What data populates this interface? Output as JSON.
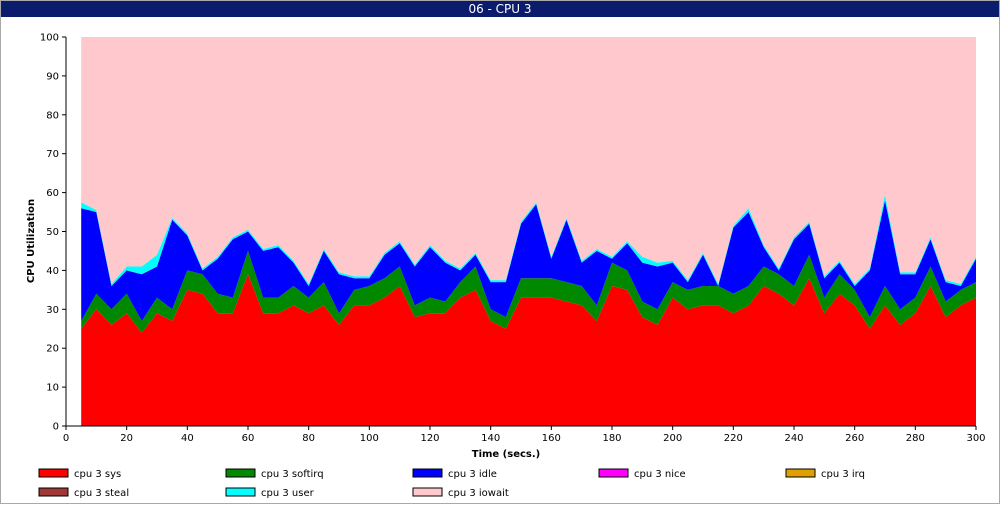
{
  "window": {
    "title": "06 - CPU 3"
  },
  "chart_data": {
    "type": "area",
    "stacked": true,
    "xlabel": "Time (secs.)",
    "ylabel": "CPU Utilization",
    "xlim": [
      0,
      300
    ],
    "ylim": [
      0,
      100
    ],
    "xticks": [
      0,
      20,
      40,
      60,
      80,
      100,
      120,
      140,
      160,
      180,
      200,
      220,
      240,
      260,
      280,
      300
    ],
    "yticks": [
      0,
      10,
      20,
      30,
      40,
      50,
      60,
      70,
      80,
      90,
      100
    ],
    "grid": false,
    "legend_position": "bottom",
    "x": [
      5,
      10,
      15,
      20,
      25,
      30,
      35,
      40,
      45,
      50,
      55,
      60,
      65,
      70,
      75,
      80,
      85,
      90,
      95,
      100,
      105,
      110,
      115,
      120,
      125,
      130,
      135,
      140,
      145,
      150,
      155,
      160,
      165,
      170,
      175,
      180,
      185,
      190,
      195,
      200,
      205,
      210,
      215,
      220,
      225,
      230,
      235,
      240,
      245,
      250,
      255,
      260,
      265,
      270,
      275,
      280,
      285,
      290,
      295,
      300
    ],
    "series": [
      {
        "name": "cpu 3 sys",
        "color": "#ff0000",
        "values": [
          25,
          30,
          26,
          29,
          24,
          29,
          27,
          35,
          34,
          29,
          29,
          39,
          29,
          29,
          31,
          29,
          31,
          26,
          31,
          31,
          33,
          36,
          28,
          29,
          29,
          33,
          35,
          27,
          25,
          33,
          33,
          33,
          32,
          31,
          27,
          36,
          35,
          28,
          26,
          33,
          30,
          31,
          31,
          29,
          31,
          36,
          34,
          31,
          38,
          29,
          34,
          31,
          25,
          31,
          26,
          29,
          36,
          28,
          31,
          33
        ]
      },
      {
        "name": "cpu 3 softirq",
        "color": "#008800",
        "values": [
          2,
          4,
          4,
          5,
          3,
          4,
          3,
          5,
          5,
          5,
          4,
          6,
          4,
          4,
          5,
          4,
          6,
          3,
          4,
          5,
          5,
          5,
          3,
          4,
          3,
          4,
          6,
          3,
          3,
          5,
          5,
          5,
          5,
          5,
          4,
          6,
          5,
          4,
          4,
          4,
          5,
          5,
          5,
          5,
          5,
          5,
          5,
          5,
          6,
          4,
          5,
          4,
          3,
          5,
          4,
          4,
          5,
          4,
          4,
          4
        ]
      },
      {
        "name": "cpu 3 idle",
        "color": "#0000ff",
        "values": [
          29,
          21,
          6,
          6,
          12,
          8,
          23,
          9,
          1,
          9,
          15,
          5,
          12,
          13,
          6,
          3,
          8,
          10,
          3,
          2,
          6,
          6,
          10,
          13,
          10,
          3,
          3,
          7,
          9,
          14,
          19,
          5,
          16,
          6,
          14,
          1,
          7,
          10,
          11,
          5,
          2,
          8,
          0,
          17,
          19,
          5,
          1,
          12,
          8,
          5,
          3,
          1,
          12,
          22,
          9,
          6,
          7,
          5,
          1,
          6
        ]
      },
      {
        "name": "cpu 3 nice",
        "color": "#ff00ff",
        "values": [
          0,
          0,
          0,
          0,
          0,
          0,
          0,
          0,
          0,
          0,
          0,
          0,
          0,
          0,
          0,
          0,
          0,
          0,
          0,
          0,
          0,
          0,
          0,
          0,
          0,
          0,
          0,
          0,
          0,
          0,
          0,
          0,
          0,
          0,
          0,
          0,
          0,
          0,
          0,
          0,
          0,
          0,
          0,
          0,
          0,
          0,
          0,
          0,
          0,
          0,
          0,
          0,
          0,
          0,
          0,
          0,
          0,
          0,
          0,
          0
        ]
      },
      {
        "name": "cpu 3 irq",
        "color": "#e0a000",
        "values": [
          0,
          0,
          0,
          0,
          0,
          0,
          0,
          0,
          0,
          0,
          0,
          0,
          0,
          0,
          0,
          0,
          0,
          0,
          0,
          0,
          0,
          0,
          0,
          0,
          0,
          0,
          0,
          0,
          0,
          0,
          0,
          0,
          0,
          0,
          0,
          0,
          0,
          0,
          0,
          0,
          0,
          0,
          0,
          0,
          0,
          0,
          0,
          0,
          0,
          0,
          0,
          0,
          0,
          0,
          0,
          0,
          0,
          0,
          0,
          0
        ]
      },
      {
        "name": "cpu 3 steal",
        "color": "#a03838",
        "values": [
          0,
          0,
          0,
          0,
          0,
          0,
          0,
          0,
          0,
          0,
          0,
          0,
          0,
          0,
          0,
          0,
          0,
          0,
          0,
          0,
          0,
          0,
          0,
          0,
          0,
          0,
          0,
          0,
          0,
          0,
          0,
          0,
          0,
          0,
          0,
          0,
          0,
          0,
          0,
          0,
          0,
          0,
          0,
          0,
          0,
          0,
          0,
          0,
          0,
          0,
          0,
          0,
          0,
          0,
          0,
          0,
          0,
          0,
          0,
          0
        ]
      },
      {
        "name": "cpu 3 user",
        "color": "#00ffff",
        "values": [
          1.5,
          0.5,
          0.5,
          1,
          2,
          3,
          0.5,
          0.5,
          0.5,
          0.5,
          0.5,
          0.5,
          0.5,
          0.5,
          0.5,
          0.5,
          0.5,
          0.5,
          0.5,
          0.5,
          0.5,
          0.5,
          0.5,
          0.5,
          0.5,
          0.5,
          0.5,
          0.5,
          0.5,
          0.5,
          0.5,
          0.5,
          0.5,
          0.5,
          0.5,
          0.5,
          0.5,
          1.5,
          1,
          0.5,
          0.5,
          0.5,
          0.5,
          0.5,
          1,
          0.5,
          0.5,
          0.5,
          0.5,
          0.5,
          0.5,
          0.5,
          0.5,
          1.5,
          0.5,
          0.5,
          0.5,
          0.5,
          0.5,
          0.5
        ]
      },
      {
        "name": "cpu 3 iowait",
        "color": "#ffc8cc",
        "values": [
          42.5,
          44.5,
          63.5,
          59,
          59,
          56,
          46.5,
          50.5,
          59.5,
          56.5,
          51.5,
          49.5,
          54.5,
          53.5,
          57.5,
          63.5,
          54.5,
          60.5,
          61.5,
          61.5,
          55.5,
          52.5,
          58.5,
          53.5,
          57.5,
          59.5,
          55.5,
          62.5,
          62.5,
          47.5,
          42.5,
          56.5,
          46.5,
          57.5,
          54.5,
          56.5,
          52.5,
          56.5,
          58,
          57.5,
          62.5,
          55.5,
          63.5,
          48.5,
          44,
          53.5,
          59.5,
          51.5,
          47.5,
          61.5,
          57.5,
          63.5,
          59.5,
          40.5,
          60.5,
          60.5,
          51.5,
          62.5,
          63.5,
          56.5
        ]
      }
    ]
  }
}
